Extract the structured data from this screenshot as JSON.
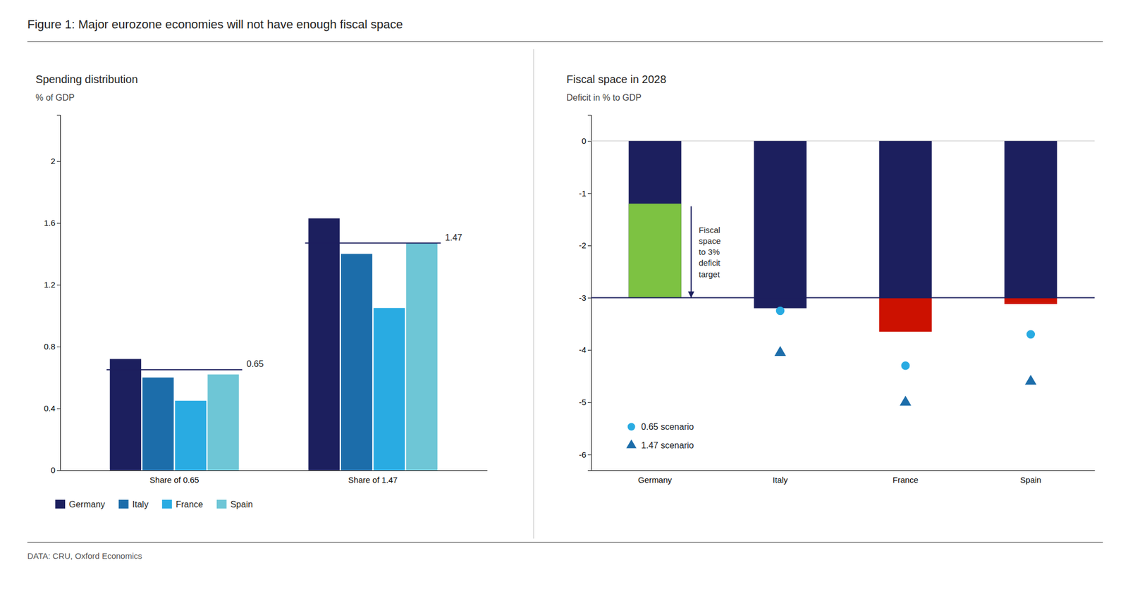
{
  "title": "Figure 1: Major eurozone economies will not have enough fiscal space",
  "source": "DATA: CRU, Oxford Economics",
  "chart_data": [
    {
      "type": "bar",
      "title": "Spending distribution",
      "subtitle": "% of GDP",
      "categories": [
        "Share of 0.65",
        "Share of 1.47"
      ],
      "series": [
        {
          "name": "Germany",
          "color": "#1c1f5e",
          "values": [
            0.72,
            1.63
          ]
        },
        {
          "name": "Italy",
          "color": "#1c6daa",
          "values": [
            0.6,
            1.4
          ]
        },
        {
          "name": "France",
          "color": "#29abe2",
          "values": [
            0.45,
            1.05
          ]
        },
        {
          "name": "Spain",
          "color": "#6ec6d6",
          "values": [
            0.62,
            1.47
          ]
        }
      ],
      "reference_lines": [
        {
          "value": 0.65,
          "label": "0.65",
          "color": "#1c1f5e"
        },
        {
          "value": 1.47,
          "label": "1.47",
          "color": "#1c1f5e"
        }
      ],
      "ylim": [
        0,
        2.3
      ],
      "yticks": [
        0,
        0.4,
        0.8,
        1.2,
        1.6,
        2
      ],
      "grid": false,
      "legend": "bottom"
    },
    {
      "type": "bar",
      "title": "Fiscal space in 2028",
      "subtitle": "Deficit in % to GDP",
      "categories": [
        "Germany",
        "Italy",
        "France",
        "Spain"
      ],
      "baseline": 0,
      "series": [
        {
          "type": "bar",
          "color": "#1c1f5e",
          "values": [
            -3.0,
            -3.2,
            -3.0,
            -3.0
          ]
        },
        {
          "type": "bar",
          "color": "#7dc242",
          "starts": [
            -1.2,
            null,
            null,
            null
          ],
          "values": [
            -3.0,
            null,
            null,
            null
          ]
        },
        {
          "type": "bar",
          "color": "#cc1100",
          "starts": [
            null,
            null,
            -3.0,
            -3.0
          ],
          "values": [
            null,
            null,
            -3.65,
            -3.12
          ]
        },
        {
          "type": "scatter",
          "name": "0.65 scenario",
          "marker": "circle",
          "color": "#29abe2",
          "values": [
            null,
            -3.25,
            -4.3,
            -3.7
          ]
        },
        {
          "type": "scatter",
          "name": "1.47 scenario",
          "marker": "triangle",
          "color": "#1c6daa",
          "values": [
            null,
            -4.05,
            -5.0,
            -4.6
          ]
        }
      ],
      "reference_lines": [
        {
          "value": -3.0,
          "color": "#1c1f5e"
        }
      ],
      "annotation": {
        "text": "Fiscal\nspace\nto 3%\ndeficit\ntarget",
        "from": -1.25,
        "to": -3.0,
        "color": "#1c1f5e"
      },
      "ylim": [
        -6.3,
        0.5
      ],
      "yticks": [
        0,
        -1,
        -2,
        -3,
        -4,
        -5,
        -6
      ],
      "grid": false,
      "legend": "lower left"
    }
  ]
}
